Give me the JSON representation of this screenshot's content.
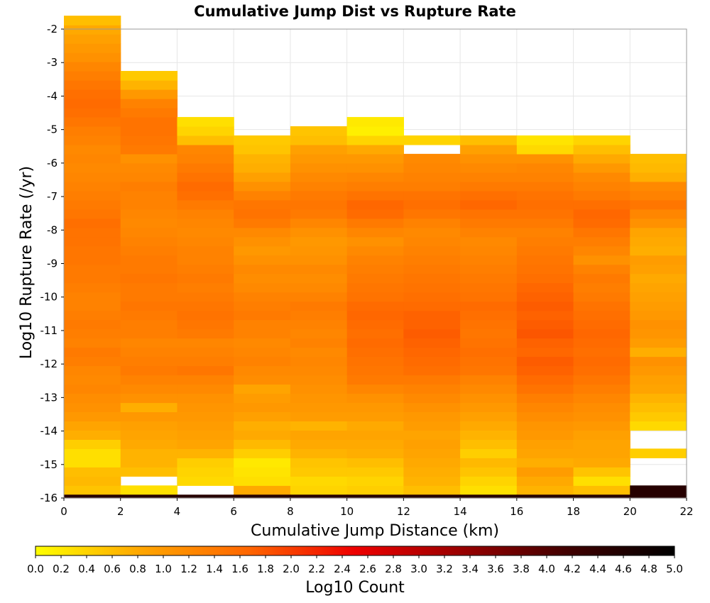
{
  "chart_data": {
    "type": "heatmap",
    "title": "Cumulative Jump Dist vs Rupture Rate",
    "xlabel": "Cumulative Jump Distance (km)",
    "ylabel": "Log10 Rupture Rate (/yr)",
    "colorbar_label": "Log10 Count",
    "xlim": [
      0,
      22
    ],
    "ylim": [
      -16,
      -2
    ],
    "x_ticks": [
      "0",
      "2",
      "4",
      "6",
      "8",
      "10",
      "12",
      "14",
      "16",
      "18",
      "20",
      "22"
    ],
    "y_ticks": [
      "-2",
      "-3",
      "-4",
      "-5",
      "-6",
      "-7",
      "-8",
      "-9",
      "-10",
      "-11",
      "-12",
      "-13",
      "-14",
      "-15",
      "-16"
    ],
    "colorbar_ticks": [
      "0.0",
      "0.2",
      "0.4",
      "0.6",
      "0.8",
      "1.0",
      "1.2",
      "1.4",
      "1.6",
      "1.8",
      "2.0",
      "2.2",
      "2.4",
      "2.6",
      "2.8",
      "3.0",
      "3.2",
      "3.4",
      "3.6",
      "3.8",
      "4.0",
      "4.2",
      "4.4",
      "4.6",
      "4.8",
      "5.0"
    ],
    "colorbar_range": [
      0,
      5
    ],
    "colormap": [
      "#ffff00",
      "#ffa500",
      "#ff6600",
      "#ee0000",
      "#990000",
      "#400000",
      "#000000"
    ],
    "x_bin_edges": [
      0,
      2,
      4,
      6,
      8,
      10,
      12,
      14,
      16,
      18,
      20,
      22
    ],
    "y_bin_size": 0.275,
    "y_bin_start": -16,
    "grid": true,
    "legend": "colorbar bottom",
    "columns": [
      {
        "x": 0,
        "y_min": -15.9,
        "cells": [
          0.55,
          0.65,
          0.6,
          0.3,
          0.3,
          0.45,
          0.75,
          0.85,
          1.0,
          1.1,
          1.15,
          1.25,
          1.2,
          1.25,
          1.35,
          1.4,
          1.3,
          1.35,
          1.4,
          1.35,
          1.3,
          1.3,
          1.35,
          1.4,
          1.4,
          1.45,
          1.45,
          1.5,
          1.5,
          1.55,
          1.45,
          1.4,
          1.35,
          1.3,
          1.25,
          1.2,
          1.25,
          1.2,
          1.3,
          1.35,
          1.45,
          1.55,
          1.6,
          1.55,
          1.45,
          1.35,
          1.25,
          1.1,
          1.0,
          0.9,
          0.8,
          0.6
        ]
      },
      {
        "x": 2,
        "y_min": -15.9,
        "cells": [
          0.3,
          null,
          0.6,
          0.7,
          0.7,
          0.8,
          0.85,
          0.9,
          1.0,
          0.75,
          1.1,
          1.2,
          1.3,
          1.4,
          1.35,
          1.3,
          1.25,
          1.35,
          1.35,
          1.4,
          1.45,
          1.4,
          1.4,
          1.45,
          1.4,
          1.4,
          1.35,
          1.3,
          1.25,
          1.2,
          1.25,
          1.3,
          1.3,
          1.35,
          1.25,
          1.2,
          1.1,
          1.4,
          1.45,
          1.5,
          1.5,
          1.4,
          1.3,
          1.0,
          0.7,
          0.5
        ]
      },
      {
        "x": 4,
        "y_min": -15.9,
        "cells": [
          null,
          0.35,
          0.4,
          0.45,
          0.7,
          0.85,
          0.9,
          0.95,
          1.0,
          1.05,
          1.1,
          1.2,
          1.3,
          1.45,
          1.35,
          1.3,
          1.25,
          1.4,
          1.45,
          1.5,
          1.45,
          1.4,
          1.35,
          1.4,
          1.35,
          1.3,
          1.3,
          1.25,
          1.2,
          1.25,
          1.3,
          1.4,
          1.55,
          1.6,
          1.5,
          1.4,
          1.3,
          1.25,
          0.6,
          0.4,
          0.3
        ]
      },
      {
        "x": 6,
        "y_min": -15.9,
        "cells": [
          0.8,
          0.3,
          0.25,
          0.2,
          0.45,
          0.65,
          0.8,
          0.75,
          0.9,
          1.0,
          0.95,
          0.85,
          1.15,
          1.2,
          1.3,
          1.25,
          1.2,
          1.3,
          1.3,
          1.4,
          1.35,
          1.3,
          1.2,
          1.15,
          1.2,
          1.1,
          1.0,
          1.1,
          1.2,
          1.4,
          1.5,
          1.45,
          1.3,
          1.1,
          0.9,
          0.75,
          0.7,
          0.55,
          0.5
        ]
      },
      {
        "x": 8,
        "y_min": -15.9,
        "cells": [
          0.4,
          0.35,
          0.5,
          0.55,
          0.7,
          0.8,
          0.85,
          0.7,
          0.95,
          1.0,
          1.05,
          1.1,
          1.15,
          1.2,
          1.25,
          1.2,
          1.3,
          1.25,
          1.3,
          1.35,
          1.4,
          1.3,
          1.2,
          1.15,
          1.2,
          1.1,
          1.05,
          1.0,
          1.1,
          1.25,
          1.4,
          1.45,
          1.4,
          1.3,
          1.2,
          1.1,
          1.0,
          0.9,
          0.6,
          0.55
        ]
      },
      {
        "x": 10,
        "y_min": -15.9,
        "cells": [
          0.45,
          0.4,
          0.5,
          0.6,
          0.75,
          0.8,
          0.85,
          0.8,
          0.95,
          1.0,
          1.1,
          1.25,
          1.4,
          1.45,
          1.5,
          1.55,
          1.6,
          1.55,
          1.6,
          1.65,
          1.6,
          1.5,
          1.45,
          1.4,
          1.35,
          1.3,
          1.2,
          1.1,
          1.25,
          1.4,
          1.6,
          1.65,
          1.5,
          1.35,
          1.25,
          1.1,
          1.0,
          0.8,
          0.4,
          0.15,
          0.2
        ]
      },
      {
        "x": 12,
        "y_min": -15.9,
        "cells": [
          0.6,
          0.7,
          0.75,
          0.8,
          0.85,
          0.9,
          0.85,
          0.95,
          1.0,
          1.1,
          1.2,
          1.3,
          1.4,
          1.55,
          1.6,
          1.65,
          1.7,
          1.75,
          1.7,
          1.7,
          1.6,
          1.55,
          1.5,
          1.45,
          1.4,
          1.35,
          1.3,
          1.25,
          1.2,
          1.3,
          1.45,
          1.55,
          1.5,
          1.35,
          1.3,
          1.25,
          1.2,
          null,
          0.4
        ]
      },
      {
        "x": 14,
        "y_min": -15.9,
        "cells": [
          0.3,
          0.4,
          0.55,
          0.65,
          0.45,
          0.6,
          0.7,
          0.8,
          0.9,
          1.0,
          1.1,
          1.2,
          1.3,
          1.45,
          1.5,
          1.55,
          1.5,
          1.45,
          1.5,
          1.55,
          1.6,
          1.5,
          1.45,
          1.4,
          1.35,
          1.3,
          1.25,
          1.2,
          1.3,
          1.4,
          1.5,
          1.65,
          1.55,
          1.4,
          1.3,
          1.2,
          1.1,
          0.9,
          0.6
        ]
      },
      {
        "x": 16,
        "y_min": -15.9,
        "cells": [
          0.7,
          0.8,
          0.95,
          0.75,
          0.85,
          0.9,
          1.0,
          1.05,
          1.15,
          1.25,
          1.35,
          1.5,
          1.6,
          1.7,
          1.75,
          1.65,
          1.7,
          1.8,
          1.75,
          1.7,
          1.75,
          1.7,
          1.65,
          1.55,
          1.5,
          1.45,
          1.4,
          1.35,
          1.3,
          1.4,
          1.5,
          1.55,
          1.5,
          1.4,
          1.3,
          1.25,
          1.1,
          0.35,
          0.25
        ]
      },
      {
        "x": 18,
        "y_min": -15.9,
        "cells": [
          0.6,
          0.3,
          0.55,
          0.8,
          0.85,
          0.85,
          0.9,
          1.0,
          1.1,
          1.15,
          1.25,
          1.35,
          1.45,
          1.55,
          1.6,
          1.55,
          1.6,
          1.65,
          1.6,
          1.55,
          1.5,
          1.4,
          1.35,
          1.4,
          1.3,
          1.1,
          1.25,
          1.35,
          1.45,
          1.6,
          1.65,
          1.55,
          1.4,
          1.3,
          1.2,
          1.0,
          0.8,
          0.6,
          0.4
        ]
      },
      {
        "x": 20,
        "y_min": -15.9,
        "cells": [
          4.5,
          null,
          null,
          null,
          0.45,
          null,
          null,
          0.35,
          0.5,
          0.6,
          0.7,
          0.85,
          0.9,
          1.0,
          1.1,
          0.75,
          0.95,
          1.05,
          1.1,
          1.0,
          0.95,
          0.9,
          0.85,
          0.8,
          0.9,
          0.95,
          0.75,
          0.8,
          0.85,
          1.1,
          1.25,
          1.45,
          1.3,
          1.2,
          0.75,
          0.65,
          0.6
        ]
      }
    ],
    "bottom_row": {
      "y": -16,
      "height": 0.1,
      "values": [
        4.5,
        4.5,
        4.5,
        4.5,
        4.5,
        4.5,
        4.5,
        4.5,
        4.5,
        4.5,
        4.5
      ]
    }
  }
}
